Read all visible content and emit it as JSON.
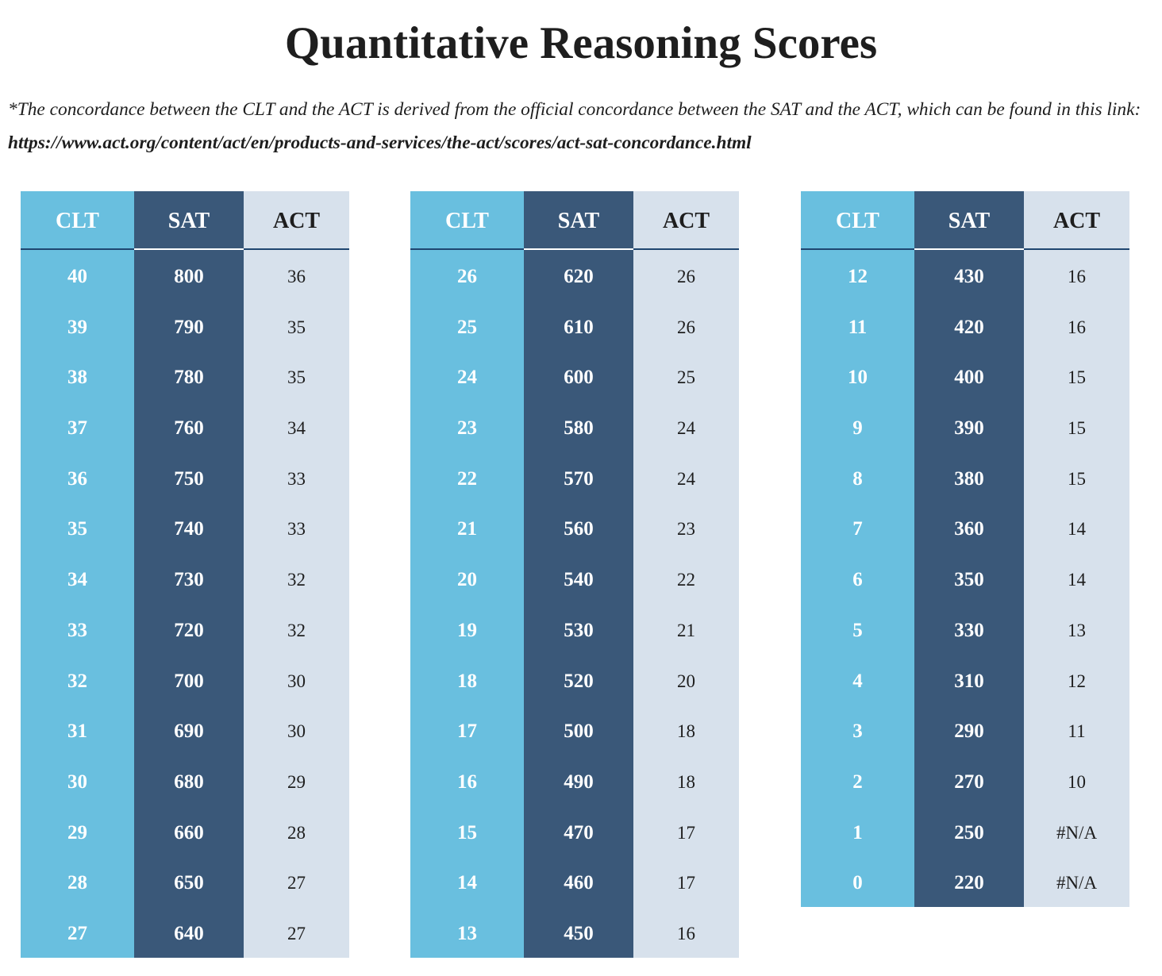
{
  "title": "Quantitative Reasoning Scores",
  "note": {
    "text": "*The concordance between the CLT and the ACT is derived from the official concordance between the SAT and the ACT, which can be found in this link: ",
    "link": "https://www.act.org/content/act/en/products-and-services/the-act/scores/act-sat-concordance.html"
  },
  "colors": {
    "clt": "#69bfdf",
    "sat": "#3a5879",
    "act": "#d7e1ec",
    "rule": "#1f4670"
  },
  "headers": [
    "CLT",
    "SAT",
    "ACT"
  ],
  "tables": [
    {
      "rows": [
        [
          "40",
          "800",
          "36"
        ],
        [
          "39",
          "790",
          "35"
        ],
        [
          "38",
          "780",
          "35"
        ],
        [
          "37",
          "760",
          "34"
        ],
        [
          "36",
          "750",
          "33"
        ],
        [
          "35",
          "740",
          "33"
        ],
        [
          "34",
          "730",
          "32"
        ],
        [
          "33",
          "720",
          "32"
        ],
        [
          "32",
          "700",
          "30"
        ],
        [
          "31",
          "690",
          "30"
        ],
        [
          "30",
          "680",
          "29"
        ],
        [
          "29",
          "660",
          "28"
        ],
        [
          "28",
          "650",
          "27"
        ],
        [
          "27",
          "640",
          "27"
        ]
      ]
    },
    {
      "rows": [
        [
          "26",
          "620",
          "26"
        ],
        [
          "25",
          "610",
          "26"
        ],
        [
          "24",
          "600",
          "25"
        ],
        [
          "23",
          "580",
          "24"
        ],
        [
          "22",
          "570",
          "24"
        ],
        [
          "21",
          "560",
          "23"
        ],
        [
          "20",
          "540",
          "22"
        ],
        [
          "19",
          "530",
          "21"
        ],
        [
          "18",
          "520",
          "20"
        ],
        [
          "17",
          "500",
          "18"
        ],
        [
          "16",
          "490",
          "18"
        ],
        [
          "15",
          "470",
          "17"
        ],
        [
          "14",
          "460",
          "17"
        ],
        [
          "13",
          "450",
          "16"
        ]
      ]
    },
    {
      "rows": [
        [
          "12",
          "430",
          "16"
        ],
        [
          "11",
          "420",
          "16"
        ],
        [
          "10",
          "400",
          "15"
        ],
        [
          "9",
          "390",
          "15"
        ],
        [
          "8",
          "380",
          "15"
        ],
        [
          "7",
          "360",
          "14"
        ],
        [
          "6",
          "350",
          "14"
        ],
        [
          "5",
          "330",
          "13"
        ],
        [
          "4",
          "310",
          "12"
        ],
        [
          "3",
          "290",
          "11"
        ],
        [
          "2",
          "270",
          "10"
        ],
        [
          "1",
          "250",
          "#N/A"
        ],
        [
          "0",
          "220",
          "#N/A"
        ]
      ]
    }
  ]
}
